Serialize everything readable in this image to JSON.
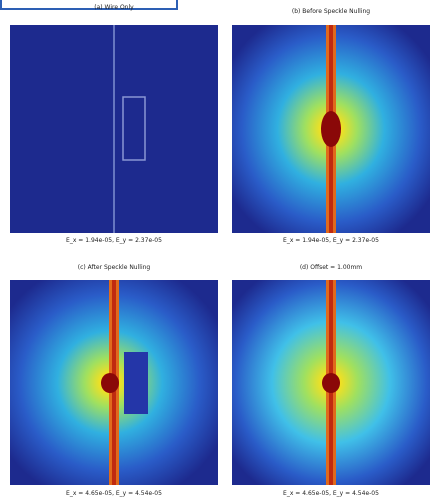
{
  "panels": [
    {
      "title": "(a) Wire Only",
      "caption": "E_x = 1.94e-05, E_y = 2.37e-05"
    },
    {
      "title": "(b) Before Speckle Nulling",
      "caption": "E_x = 1.94e-05, E_y = 2.37e-05"
    },
    {
      "title": "(c) After Speckle Nulling",
      "caption": "E_x = 4.65e-05, E_y = 4.54e-05"
    },
    {
      "title": "(d) Offset = 1.00mm",
      "caption": "E_x = 4.65e-05, E_y = 4.54e-05"
    }
  ]
}
